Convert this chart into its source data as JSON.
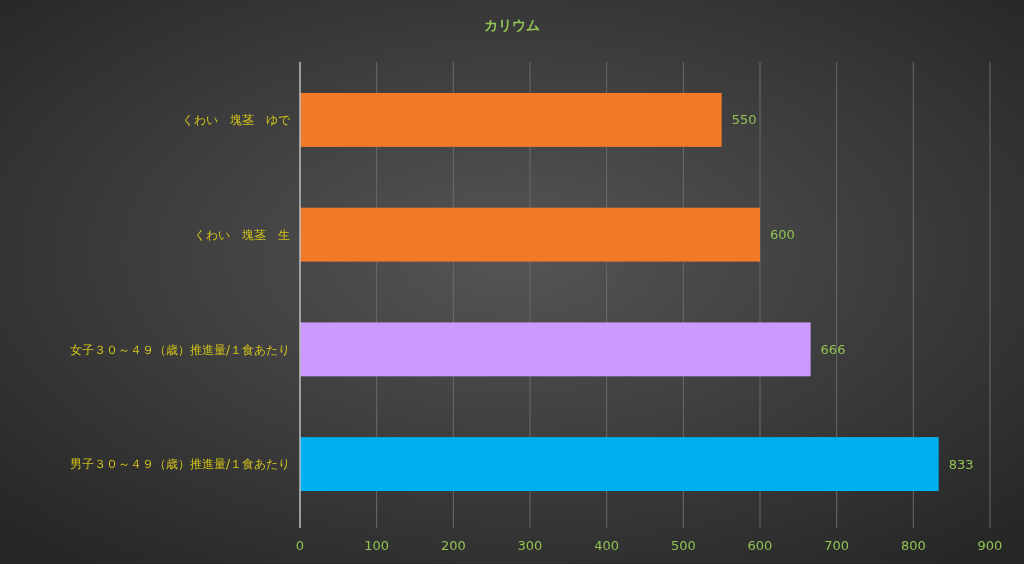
{
  "chart_data": {
    "type": "bar",
    "orientation": "horizontal",
    "title": "カリウム",
    "categories": [
      "くわい　塊茎　ゆで",
      "くわい　塊茎　生",
      "女子３０～４９（歳）推進量/１食あたり",
      "男子３０～４９（歳）推進量/１食あたり"
    ],
    "values": [
      550,
      600,
      666,
      833
    ],
    "colors": [
      "#f07a28",
      "#f07a28",
      "#cc99ff",
      "#00b0f0"
    ],
    "xlim": [
      0,
      900
    ],
    "xticks": [
      0,
      100,
      200,
      300,
      400,
      500,
      600,
      700,
      800,
      900
    ],
    "grid": "x",
    "data_labels": true
  }
}
